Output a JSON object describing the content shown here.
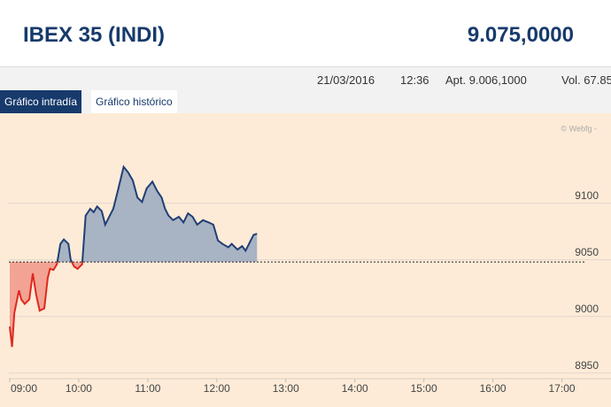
{
  "header": {
    "title": "IBEX 35 (INDI)",
    "price": "9.075,0000"
  },
  "info": {
    "date": "21/03/2016",
    "time": "12:36",
    "open": "Apt. 9.006,1000",
    "volume": "Vol. 67.85"
  },
  "tabs": [
    "Gráfico intradía",
    "Gráfico histórico"
  ],
  "watermark": "© Webfg -",
  "chart_data": {
    "type": "line",
    "x": [
      "09:00",
      "09:02",
      "09:04",
      "09:08",
      "09:10",
      "09:13",
      "09:17",
      "09:20",
      "09:23",
      "09:26",
      "09:30",
      "09:33",
      "09:35",
      "09:38",
      "09:41",
      "09:44",
      "09:47",
      "09:51",
      "09:53",
      "09:56",
      "09:59",
      "10:03",
      "10:06",
      "10:10",
      "10:13",
      "10:16",
      "10:20",
      "10:23",
      "10:27",
      "10:30",
      "10:34",
      "10:39",
      "10:43",
      "10:47",
      "10:51",
      "10:55",
      "10:59",
      "11:04",
      "11:08",
      "11:12",
      "11:15",
      "11:18",
      "11:22",
      "11:27",
      "11:31",
      "11:35",
      "11:39",
      "11:43",
      "11:48",
      "11:53",
      "11:57",
      "12:01",
      "12:05",
      "12:10",
      "12:13",
      "12:18",
      "12:22",
      "12:25",
      "12:29",
      "12:32",
      "12:35"
    ],
    "values": [
      8991,
      8973,
      9003,
      9023,
      9015,
      9011,
      9015,
      9038,
      9019,
      9005,
      9007,
      9034,
      9042,
      9041,
      9046,
      9064,
      9068,
      9064,
      9050,
      9044,
      9042,
      9046,
      9089,
      9095,
      9092,
      9097,
      9093,
      9081,
      9089,
      9095,
      9111,
      9132,
      9127,
      9120,
      9105,
      9101,
      9113,
      9119,
      9111,
      9105,
      9095,
      9089,
      9085,
      9088,
      9083,
      9091,
      9088,
      9081,
      9085,
      9083,
      9081,
      9067,
      9064,
      9061,
      9064,
      9059,
      9062,
      9058,
      9066,
      9072,
      9073
    ],
    "reference": 9048,
    "color": "#1f3f74",
    "below_color": "#e0281e",
    "fill": "#a8b3c3",
    "below_fill": "#f2a394",
    "xlim": [
      "09:00",
      "17:35"
    ],
    "xticks": [
      "09:00",
      "10:00",
      "11:00",
      "12:00",
      "13:00",
      "14:00",
      "15:00",
      "16:00",
      "17:00"
    ],
    "ylim": [
      8945,
      9170
    ],
    "yticks": [
      8950,
      9000,
      9050,
      9100
    ],
    "grid": true
  }
}
